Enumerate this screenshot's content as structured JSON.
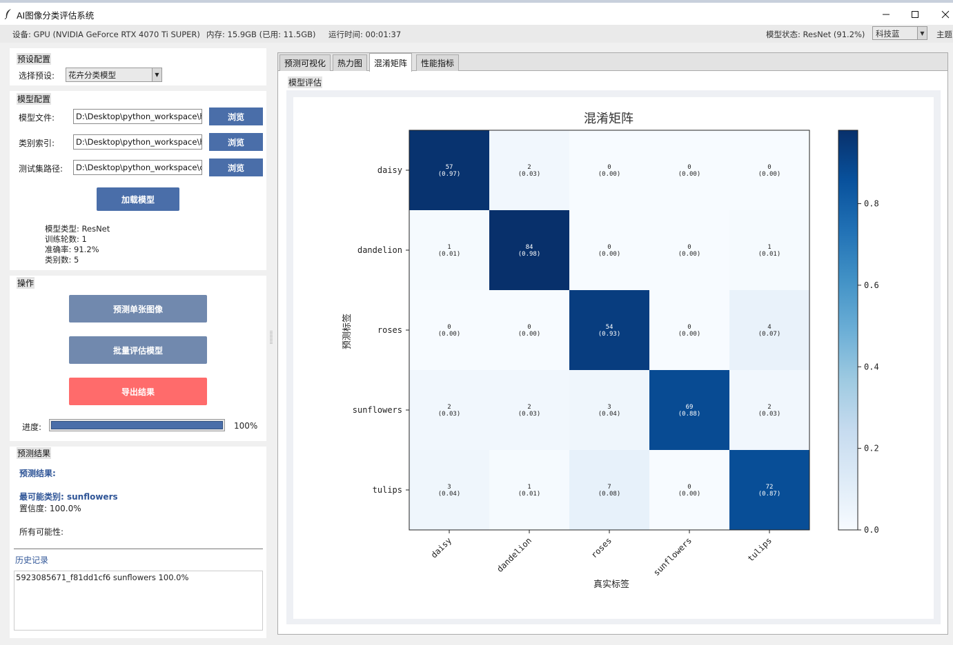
{
  "window": {
    "title": "AI图像分类评估系统",
    "minimize_glyph": "—",
    "maximize_glyph": "☐",
    "close_glyph": "✕"
  },
  "status": {
    "device": "设备: GPU (NVIDIA GeForce RTX 4070 Ti SUPER)",
    "memory": "内存: 15.9GB (已用: 11.5GB)",
    "runtime": "运行时间: 00:01:37",
    "model_status": "模型状态: ResNet (91.2%)",
    "theme_value": "科技蓝",
    "theme_label": "主题"
  },
  "preset": {
    "section_title": "预设配置",
    "label": "选择预设:",
    "value": "花卉分类模型"
  },
  "model_config": {
    "section_title": "模型配置",
    "model_file_label": "模型文件:",
    "model_file_value": "D:\\Desktop\\python_workspace\\hu",
    "class_index_label": "类别索引:",
    "class_index_value": "D:\\Desktop\\python_workspace\\hu",
    "test_path_label": "测试集路径:",
    "test_path_value": "D:\\Desktop\\python_workspace\\de",
    "browse_label": "浏览",
    "load_button": "加载模型",
    "info": {
      "model_type": "模型类型: ResNet",
      "epochs": "训练轮数: 1",
      "accuracy": "准确率: 91.2%",
      "num_classes": "类别数: 5"
    }
  },
  "operations": {
    "section_title": "操作",
    "predict_single": "预测单张图像",
    "batch_eval": "批量评估模型",
    "export": "导出结果",
    "progress_label": "进度:",
    "progress_value": 1.0,
    "progress_text": "100%"
  },
  "prediction": {
    "section_title": "预测结果",
    "header": "预测结果:",
    "top_class": "最可能类别: sunflowers",
    "confidence": "置信度: 100.0%",
    "all_probs": "所有可能性:"
  },
  "history": {
    "title": "历史记录",
    "entries": [
      "5923085671_f81dd1cf6 sunflowers 100.0%"
    ]
  },
  "tabs": {
    "items": [
      "预测可视化",
      "热力图",
      "混淆矩阵",
      "性能指标"
    ],
    "active": "混淆矩阵"
  },
  "evaluation": {
    "label": "模型评估"
  },
  "colors": {
    "accent": "#4a6ea9",
    "button_muted": "#7189ae",
    "export_red": "#ff6b6b",
    "cmap_dark": "#08306b",
    "cmap_light": "#f7fbff"
  },
  "chart_data": {
    "type": "heatmap",
    "title": "混淆矩阵",
    "xlabel": "真实标签",
    "ylabel": "预测标签",
    "x_categories": [
      "daisy",
      "dandelion",
      "roses",
      "sunflowers",
      "tulips"
    ],
    "y_categories": [
      "daisy",
      "dandelion",
      "roses",
      "sunflowers",
      "tulips"
    ],
    "counts": [
      [
        57,
        2,
        0,
        0,
        0
      ],
      [
        1,
        84,
        0,
        0,
        1
      ],
      [
        0,
        0,
        54,
        0,
        4
      ],
      [
        2,
        2,
        3,
        69,
        2
      ],
      [
        3,
        1,
        7,
        0,
        72
      ]
    ],
    "proportions": [
      [
        0.97,
        0.03,
        0.0,
        0.0,
        0.0
      ],
      [
        0.01,
        0.98,
        0.0,
        0.0,
        0.01
      ],
      [
        0.0,
        0.0,
        0.93,
        0.0,
        0.07
      ],
      [
        0.03,
        0.03,
        0.04,
        0.88,
        0.03
      ],
      [
        0.04,
        0.01,
        0.08,
        0.0,
        0.87
      ]
    ],
    "colorbar_ticks": [
      "0.0",
      "0.2",
      "0.4",
      "0.6",
      "0.8"
    ],
    "colorbar_tick_values": [
      0.0,
      0.2,
      0.4,
      0.6,
      0.8
    ],
    "colorbar_range": [
      0.0,
      0.98
    ],
    "colormap": "Blues"
  }
}
